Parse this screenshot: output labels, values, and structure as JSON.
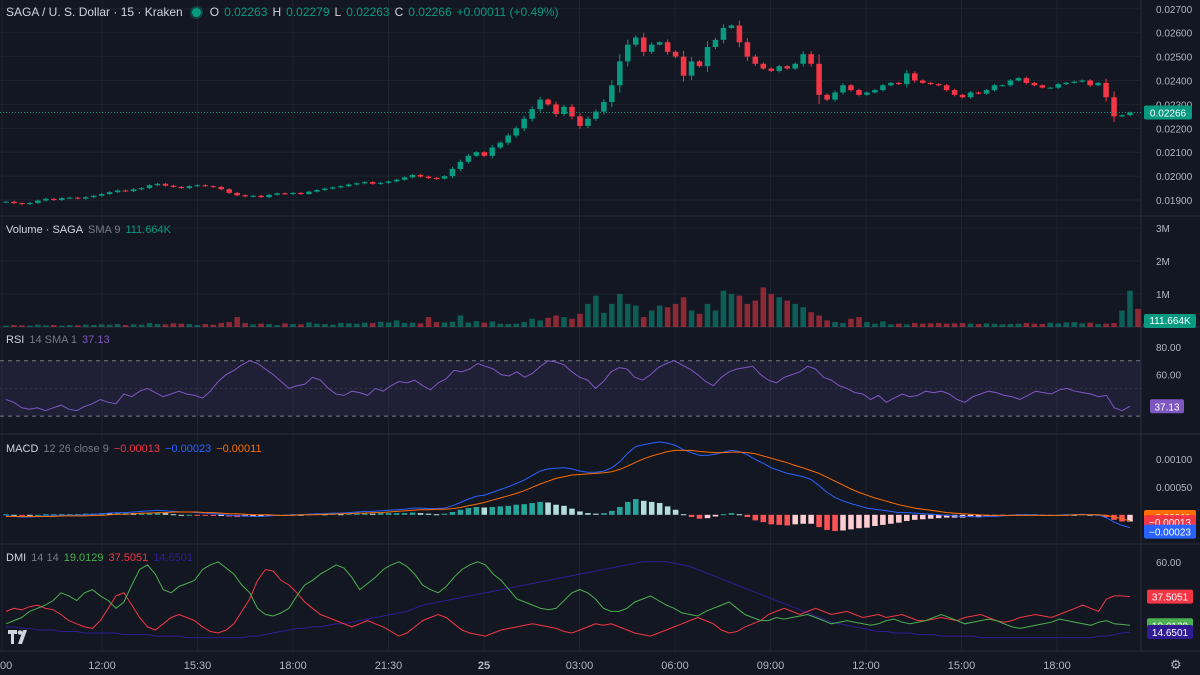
{
  "header": {
    "symbol": "SAGA / U. S. Dollar · 15 · Kraken",
    "o_label": "O",
    "o": "0.02263",
    "h_label": "H",
    "h": "0.02279",
    "l_label": "L",
    "l": "0.02263",
    "c_label": "C",
    "c": "0.02266",
    "change": "+0.00011 (+0.49%)"
  },
  "volume_legend": {
    "title": "Volume · SAGA",
    "params": "SMA 9",
    "value": "111.664K"
  },
  "rsi_legend": {
    "title": "RSI",
    "params": "14 SMA 1",
    "value": "37.13"
  },
  "macd_legend": {
    "title": "MACD",
    "params": "12 26 close 9",
    "v1": "−0.00013",
    "v2": "−0.00023",
    "v3": "−0.00011"
  },
  "dmi_legend": {
    "title": "DMI",
    "params": "14 14",
    "v1": "19.0129",
    "v2": "37.5051",
    "v3": "14.6501"
  },
  "colors": {
    "up": "#089981",
    "down": "#f23645",
    "bg": "#131722",
    "grid": "#1e222d",
    "rsi": "#7e57c2",
    "macd": "#2962ff",
    "signal": "#ff6d00",
    "dmi_plus": "#4caf50",
    "dmi_minus": "#f23645",
    "adx": "#311b92"
  },
  "icons": {
    "logo": "tradingview-logo-icon",
    "settings": "gear-icon"
  },
  "chart_data": {
    "type": "candlestick",
    "time_labels": [
      "00",
      "12:00",
      "15:30",
      "18:00",
      "21:30",
      "25",
      "03:00",
      "06:00",
      "09:00",
      "12:00",
      "15:00",
      "18:00"
    ],
    "price_axis": {
      "ticks": [
        "0.02700",
        "0.02600",
        "0.02500",
        "0.02400",
        "0.02300",
        "0.02200",
        "0.02100",
        "0.02000",
        "0.01900"
      ],
      "min": 0.0185,
      "max": 0.0272,
      "last_price": "0.02266",
      "last": 0.02266
    },
    "closes": [
      0.01893,
      0.01887,
      0.01883,
      0.01888,
      0.01898,
      0.01905,
      0.019,
      0.01908,
      0.0191,
      0.01906,
      0.01912,
      0.01918,
      0.01925,
      0.01933,
      0.0194,
      0.01937,
      0.01945,
      0.0195,
      0.01962,
      0.01968,
      0.0196,
      0.01955,
      0.0195,
      0.01958,
      0.01962,
      0.01958,
      0.01955,
      0.01945,
      0.0193,
      0.0192,
      0.01915,
      0.01918,
      0.01912,
      0.01922,
      0.01928,
      0.01925,
      0.0193,
      0.01925,
      0.01935,
      0.01942,
      0.01948,
      0.01953,
      0.01958,
      0.01965,
      0.0197,
      0.01975,
      0.01968,
      0.01972,
      0.01978,
      0.01985,
      0.01995,
      0.02005,
      0.01998,
      0.01992,
      0.0199,
      0.02,
      0.0203,
      0.0206,
      0.02085,
      0.021,
      0.02085,
      0.0212,
      0.0214,
      0.0217,
      0.022,
      0.0224,
      0.0228,
      0.0232,
      0.023,
      0.0226,
      0.0229,
      0.0225,
      0.0221,
      0.0224,
      0.0227,
      0.0231,
      0.0238,
      0.0248,
      0.0255,
      0.0258,
      0.0252,
      0.0255,
      0.0256,
      0.0252,
      0.025,
      0.0242,
      0.0248,
      0.0246,
      0.0254,
      0.0257,
      0.0262,
      0.0263,
      0.0256,
      0.025,
      0.0247,
      0.0245,
      0.0244,
      0.0246,
      0.0245,
      0.0247,
      0.0251,
      0.0247,
      0.0234,
      0.0232,
      0.0235,
      0.0238,
      0.0236,
      0.0234,
      0.0235,
      0.0236,
      0.0238,
      0.0239,
      0.02385,
      0.0243,
      0.024,
      0.0239,
      0.02385,
      0.0238,
      0.0236,
      0.0234,
      0.0233,
      0.0235,
      0.02345,
      0.0236,
      0.0238,
      0.0238,
      0.024,
      0.0241,
      0.0239,
      0.0238,
      0.0237,
      0.0237,
      0.02385,
      0.0239,
      0.02395,
      0.024,
      0.0238,
      0.0239,
      0.0233,
      0.0225,
      0.02255,
      0.02266
    ],
    "volume_axis": {
      "ticks": [
        "3M",
        "2M",
        "1M"
      ],
      "max": 3000000,
      "last_value": "111.664K"
    },
    "volumes": [
      40000,
      60000,
      50000,
      40000,
      70000,
      50000,
      60000,
      40000,
      60000,
      50000,
      70000,
      60000,
      80000,
      70000,
      90000,
      60000,
      80000,
      70000,
      120000,
      90000,
      80000,
      110000,
      100000,
      90000,
      60000,
      90000,
      70000,
      120000,
      150000,
      300000,
      120000,
      80000,
      100000,
      90000,
      60000,
      110000,
      90000,
      80000,
      140000,
      100000,
      90000,
      70000,
      120000,
      110000,
      100000,
      130000,
      120000,
      160000,
      140000,
      200000,
      120000,
      130000,
      110000,
      300000,
      150000,
      140000,
      160000,
      350000,
      140000,
      180000,
      130000,
      170000,
      100000,
      90000,
      100000,
      150000,
      250000,
      200000,
      280000,
      350000,
      300000,
      250000,
      400000,
      700000,
      950000,
      430000,
      700000,
      1000000,
      700000,
      650000,
      300000,
      500000,
      650000,
      600000,
      700000,
      900000,
      500000,
      400000,
      700000,
      500000,
      1100000,
      1000000,
      950000,
      700000,
      800000,
      1200000,
      1000000,
      900000,
      800000,
      700000,
      600000,
      450000,
      350000,
      200000,
      150000,
      120000,
      250000,
      300000,
      150000,
      100000,
      170000,
      80000,
      100000,
      80000,
      120000,
      100000,
      110000,
      120000,
      100000,
      110000,
      120000,
      100000,
      90000,
      110000,
      100000,
      80000,
      90000,
      100000,
      120000,
      100000,
      90000,
      130000,
      110000,
      140000,
      150000,
      110000,
      130000,
      90000,
      100000,
      120000,
      500000,
      1100000,
      550000,
      111664
    ],
    "rsi": {
      "ticks": [
        "80.00",
        "60.00",
        "40.00"
      ],
      "upper": 70,
      "lower": 30,
      "last": 37.13,
      "values": [
        42,
        40,
        36,
        35,
        36,
        34,
        36,
        38,
        35,
        34,
        37,
        39,
        42,
        40,
        39,
        46,
        44,
        48,
        50,
        47,
        44,
        46,
        48,
        46,
        45,
        43,
        48,
        55,
        60,
        63,
        67,
        70,
        68,
        64,
        60,
        55,
        50,
        52,
        53,
        58,
        56,
        50,
        46,
        45,
        48,
        47,
        45,
        50,
        48,
        52,
        55,
        54,
        56,
        52,
        49,
        54,
        57,
        63,
        62,
        64,
        68,
        66,
        64,
        60,
        59,
        62,
        58,
        61,
        66,
        70,
        69,
        67,
        62,
        58,
        56,
        50,
        55,
        62,
        65,
        64,
        58,
        56,
        60,
        65,
        68,
        70,
        67,
        64,
        60,
        55,
        52,
        58,
        62,
        64,
        65,
        66,
        60,
        56,
        54,
        58,
        60,
        62,
        66,
        64,
        58,
        56,
        52,
        50,
        47,
        46,
        42,
        45,
        40,
        43,
        46,
        44,
        45,
        48,
        47,
        48,
        46,
        42,
        40,
        44,
        46,
        48,
        47,
        45,
        44,
        42,
        45,
        48,
        47,
        46,
        49,
        50,
        48,
        47,
        46,
        44,
        45,
        36,
        34,
        37.13
      ]
    },
    "macd": {
      "ticks": [
        "0.00100",
        "0.00050"
      ],
      "min": -0.00045,
      "max": 0.0013,
      "last_macd": -0.00023,
      "last_signal": -0.00011,
      "last_hist": -0.00013,
      "macd": [
        -2e-05,
        -3e-05,
        -4e-05,
        -4e-05,
        -3e-05,
        -2e-05,
        -2e-05,
        -1e-05,
        -1e-05,
        -1e-05,
        0,
        1e-05,
        2e-05,
        3e-05,
        4e-05,
        4e-05,
        5e-05,
        6e-05,
        7e-05,
        8e-05,
        7e-05,
        6e-05,
        5e-05,
        5e-05,
        4e-05,
        3e-05,
        2e-05,
        1e-05,
        -1e-05,
        -2e-05,
        -2e-05,
        -3e-05,
        -3e-05,
        -2e-05,
        -1e-05,
        -1e-05,
        0,
        0,
        1e-05,
        2e-05,
        2e-05,
        3e-05,
        3e-05,
        4e-05,
        5e-05,
        6e-05,
        6e-05,
        7e-05,
        8e-05,
        9e-05,
        0.0001,
        0.00012,
        0.00012,
        0.00011,
        0.00011,
        0.00012,
        0.00016,
        0.00022,
        0.00028,
        0.00033,
        0.00035,
        0.0004,
        0.00045,
        0.0005,
        0.00056,
        0.00062,
        0.0007,
        0.00078,
        0.00082,
        0.00083,
        0.00084,
        0.00082,
        0.00078,
        0.00076,
        0.00076,
        0.00078,
        0.00084,
        0.00095,
        0.0011,
        0.00122,
        0.00125,
        0.00128,
        0.0013,
        0.00128,
        0.00124,
        0.00116,
        0.00111,
        0.00106,
        0.00106,
        0.00108,
        0.00112,
        0.00115,
        0.00113,
        0.00107,
        0.00099,
        0.00092,
        0.00084,
        0.00079,
        0.00074,
        0.00071,
        0.00068,
        0.00063,
        0.00052,
        0.0004,
        0.00031,
        0.00025,
        0.0002,
        0.00016,
        0.00012,
        0.0001,
        8e-05,
        6e-05,
        4e-05,
        4e-05,
        3e-05,
        2e-05,
        1e-05,
        0,
        -1e-05,
        -2e-05,
        -3e-05,
        -3e-05,
        -4e-05,
        -3e-05,
        -3e-05,
        -2e-05,
        -1e-05,
        0,
        0,
        0,
        -1e-05,
        -1e-05,
        -1e-05,
        0,
        0,
        1e-05,
        0,
        0,
        -5e-05,
        -0.00013,
        -0.00019,
        -0.00023
      ],
      "signal": [
        -3e-05,
        -3e-05,
        -3e-05,
        -3e-05,
        -3e-05,
        -3e-05,
        -3e-05,
        -2e-05,
        -2e-05,
        -2e-05,
        -2e-05,
        -1e-05,
        -1e-05,
        0,
        1e-05,
        1e-05,
        2e-05,
        3e-05,
        3e-05,
        4e-05,
        4e-05,
        5e-05,
        5e-05,
        5e-05,
        5e-05,
        4e-05,
        4e-05,
        3e-05,
        2e-05,
        2e-05,
        1e-05,
        0,
        0,
        0,
        -1e-05,
        -1e-05,
        -1e-05,
        0,
        0,
        0,
        1e-05,
        1e-05,
        2e-05,
        2e-05,
        3e-05,
        3e-05,
        4e-05,
        4e-05,
        5e-05,
        6e-05,
        7e-05,
        8e-05,
        9e-05,
        9e-05,
        0.0001,
        0.0001,
        0.00011,
        0.00013,
        0.00016,
        0.00019,
        0.00022,
        0.00026,
        0.0003,
        0.00034,
        0.00038,
        0.00043,
        0.00049,
        0.00055,
        0.0006,
        0.00065,
        0.00068,
        0.00071,
        0.00072,
        0.00073,
        0.00074,
        0.00075,
        0.00077,
        0.00081,
        0.00087,
        0.00094,
        0.001,
        0.00105,
        0.00109,
        0.00113,
        0.00115,
        0.00115,
        0.00115,
        0.00113,
        0.00112,
        0.00111,
        0.00111,
        0.00112,
        0.00112,
        0.00111,
        0.00109,
        0.00105,
        0.00101,
        0.00097,
        0.00093,
        0.00088,
        0.00084,
        0.00079,
        0.00074,
        0.00067,
        0.0006,
        0.00053,
        0.00046,
        0.0004,
        0.00035,
        0.0003,
        0.00026,
        0.00022,
        0.00018,
        0.00015,
        0.00012,
        0.0001,
        8e-05,
        6e-05,
        4e-05,
        3e-05,
        2e-05,
        1e-05,
        0,
        -1e-05,
        -1e-05,
        -1e-05,
        -1e-05,
        -1e-05,
        -1e-05,
        -1e-05,
        -1e-05,
        -1e-05,
        -1e-05,
        -1e-05,
        0,
        0,
        0,
        0,
        -1e-05,
        -4e-05,
        -7e-05,
        -0.00011
      ]
    },
    "dmi": {
      "ticks": [
        "60.00"
      ],
      "last_plus": 19.0129,
      "last_minus": 37.5051,
      "last_adx": 14.6501,
      "plus": [
        20,
        22,
        24,
        28,
        30,
        32,
        35,
        40,
        38,
        35,
        40,
        42,
        38,
        35,
        30,
        34,
        45,
        55,
        58,
        52,
        42,
        40,
        44,
        46,
        48,
        55,
        58,
        60,
        56,
        52,
        45,
        40,
        30,
        26,
        25,
        27,
        30,
        38,
        45,
        48,
        52,
        55,
        58,
        56,
        50,
        42,
        46,
        50,
        55,
        58,
        60,
        57,
        52,
        45,
        42,
        40,
        44,
        50,
        55,
        58,
        60,
        58,
        52,
        48,
        42,
        36,
        34,
        32,
        30,
        29,
        30,
        35,
        40,
        42,
        40,
        36,
        30,
        28,
        28,
        30,
        34,
        36,
        38,
        35,
        32,
        30,
        27,
        26,
        25,
        28,
        30,
        32,
        34,
        30,
        26,
        24,
        22,
        22,
        24,
        23,
        24,
        25,
        26,
        24,
        22,
        20,
        21,
        22,
        21,
        20,
        19,
        20,
        22,
        23,
        21,
        20,
        21,
        22,
        24,
        26,
        24,
        22,
        20,
        21,
        22,
        23,
        22,
        20,
        18,
        17,
        18,
        19,
        20,
        21,
        23,
        22,
        21,
        20,
        19,
        21,
        22,
        20,
        19.5,
        19.0129
      ],
      "minus": [
        28,
        30,
        29,
        31,
        32,
        30,
        29,
        26,
        22,
        20,
        18,
        17,
        22,
        30,
        38,
        40,
        32,
        24,
        18,
        16,
        20,
        24,
        26,
        24,
        22,
        18,
        15,
        14,
        16,
        20,
        28,
        36,
        48,
        55,
        54,
        48,
        45,
        40,
        34,
        30,
        26,
        24,
        22,
        20,
        18,
        20,
        22,
        20,
        18,
        15,
        12,
        14,
        18,
        22,
        24,
        26,
        24,
        20,
        16,
        14,
        13,
        12,
        14,
        16,
        17,
        18,
        19,
        20,
        19,
        18,
        17,
        15,
        14,
        16,
        18,
        20,
        19,
        20,
        18,
        16,
        14,
        13,
        12,
        14,
        16,
        18,
        20,
        22,
        24,
        22,
        20,
        16,
        14,
        15,
        18,
        20,
        22,
        26,
        28,
        30,
        28,
        26,
        28,
        30,
        28,
        26,
        27,
        28,
        26,
        24,
        25,
        26,
        24,
        25,
        26,
        24,
        22,
        22,
        23,
        24,
        23,
        22,
        24,
        25,
        26,
        24,
        22,
        21,
        22,
        24,
        25,
        26,
        25,
        24,
        26,
        28,
        30,
        32,
        30,
        28,
        36,
        38,
        38,
        37.5051
      ],
      "adx": [
        18,
        18,
        17,
        17,
        16,
        16,
        16,
        15,
        15,
        15,
        14,
        14,
        14,
        14,
        14,
        13,
        13,
        13,
        13,
        12,
        12,
        12,
        12,
        11,
        11,
        11,
        11,
        11,
        11,
        11,
        11,
        12,
        12,
        13,
        14,
        15,
        16,
        17,
        17,
        18,
        18,
        19,
        20,
        20,
        21,
        22,
        23,
        24,
        25,
        26,
        27,
        28,
        30,
        32,
        33,
        34,
        35,
        36,
        37,
        38,
        39,
        40,
        41,
        42,
        43,
        44,
        45,
        46,
        47,
        48,
        49,
        50,
        51,
        52,
        53,
        54,
        55,
        56,
        57,
        58,
        59,
        60,
        60,
        60,
        60,
        59,
        58,
        57,
        55,
        53,
        51,
        49,
        47,
        45,
        43,
        41,
        39,
        37,
        35,
        33,
        31,
        29,
        27,
        25,
        23,
        21,
        20,
        19,
        18,
        17,
        16,
        15,
        15,
        14,
        14,
        14,
        13,
        13,
        13,
        12,
        12,
        12,
        12,
        12,
        11,
        11,
        11,
        11,
        11,
        11,
        11,
        11,
        11,
        11,
        11,
        11,
        11,
        11,
        11,
        12,
        12,
        13,
        14,
        14.6501
      ]
    }
  }
}
